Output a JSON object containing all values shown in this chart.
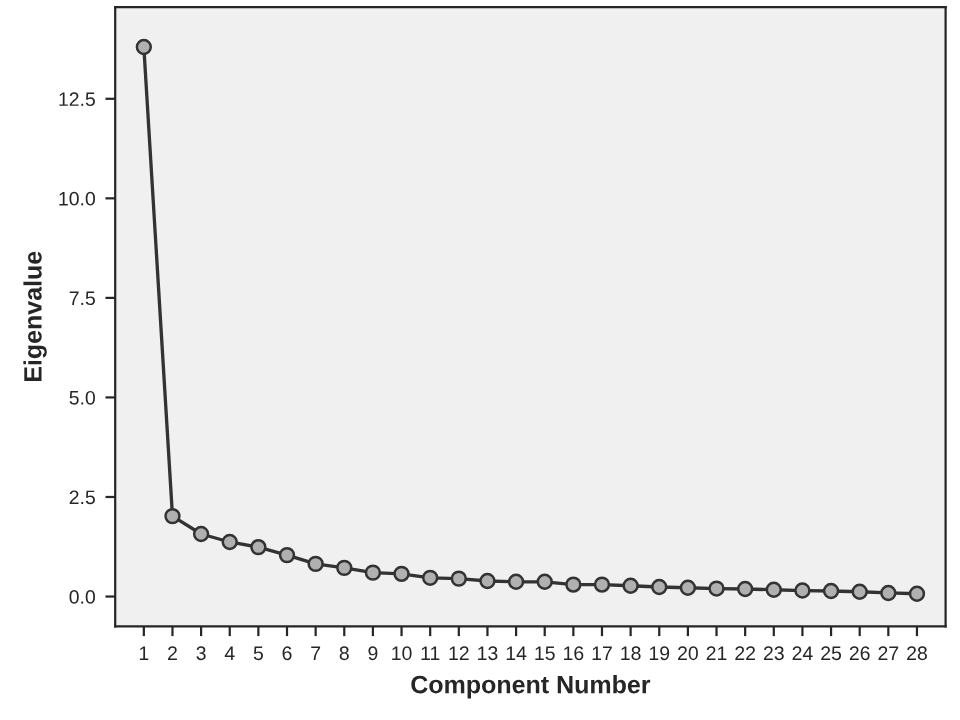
{
  "chart_data": {
    "type": "line",
    "xlabel": "Component Number",
    "ylabel": "Eigenvalue",
    "categories": [
      "1",
      "2",
      "3",
      "4",
      "5",
      "6",
      "7",
      "8",
      "9",
      "10",
      "11",
      "12",
      "13",
      "14",
      "15",
      "16",
      "17",
      "18",
      "19",
      "20",
      "21",
      "22",
      "23",
      "24",
      "25",
      "26",
      "27",
      "28"
    ],
    "series": [
      {
        "color": "#333333",
        "values": [
          13.8,
          2.02,
          1.57,
          1.37,
          1.24,
          1.04,
          0.82,
          0.72,
          0.6,
          0.57,
          0.47,
          0.45,
          0.39,
          0.37,
          0.37,
          0.3,
          0.3,
          0.27,
          0.24,
          0.22,
          0.2,
          0.19,
          0.17,
          0.15,
          0.14,
          0.12,
          0.09,
          0.07
        ]
      }
    ],
    "ylim": [
      -0.75,
      14.8
    ],
    "yticks": [
      {
        "value": 0,
        "label": "0.0"
      },
      {
        "value": 2.5,
        "label": "2.5"
      },
      {
        "value": 5,
        "label": "5.0"
      },
      {
        "value": 7.5,
        "label": "7.5"
      },
      {
        "value": 10,
        "label": "10.0"
      },
      {
        "value": 12.5,
        "label": "12.5"
      }
    ],
    "marker": "circle",
    "line_style": "solid",
    "grid": false,
    "legend": false
  }
}
